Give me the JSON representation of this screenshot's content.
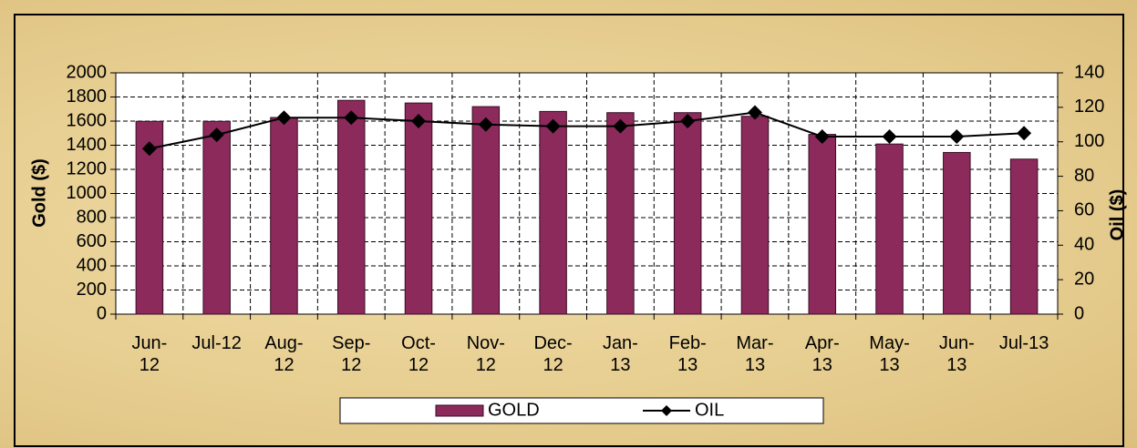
{
  "chart_data": {
    "type": "bar_line",
    "categories": [
      "Jun-12",
      "Jul-12",
      "Aug-12",
      "Sep-12",
      "Oct-12",
      "Nov-12",
      "Dec-12",
      "Jan-13",
      "Feb-13",
      "Mar-13",
      "Apr-13",
      "May-13",
      "Jun-13",
      "Jul-13"
    ],
    "series": [
      {
        "name": "GOLD",
        "type": "bar",
        "color": "#8b2a5b",
        "values": [
          1598,
          1598,
          1630,
          1772,
          1750,
          1720,
          1680,
          1670,
          1670,
          1640,
          1490,
          1410,
          1340,
          1285
        ]
      },
      {
        "name": "OIL",
        "type": "line",
        "axis": "y2",
        "color": "#000000",
        "values": [
          96,
          104,
          114,
          114,
          112,
          110,
          109,
          109,
          112,
          117,
          103,
          103,
          103,
          105
        ]
      }
    ],
    "ylabel": "Gold ($)",
    "y2label": "Oil ($)",
    "ylim": [
      0,
      2000
    ],
    "yticks": [
      0,
      200,
      400,
      600,
      800,
      1000,
      1200,
      1400,
      1600,
      1800,
      2000
    ],
    "y2lim": [
      0,
      140
    ],
    "y2ticks": [
      0,
      20,
      40,
      60,
      80,
      100,
      120,
      140
    ],
    "grid": true,
    "legend": "bottom"
  }
}
